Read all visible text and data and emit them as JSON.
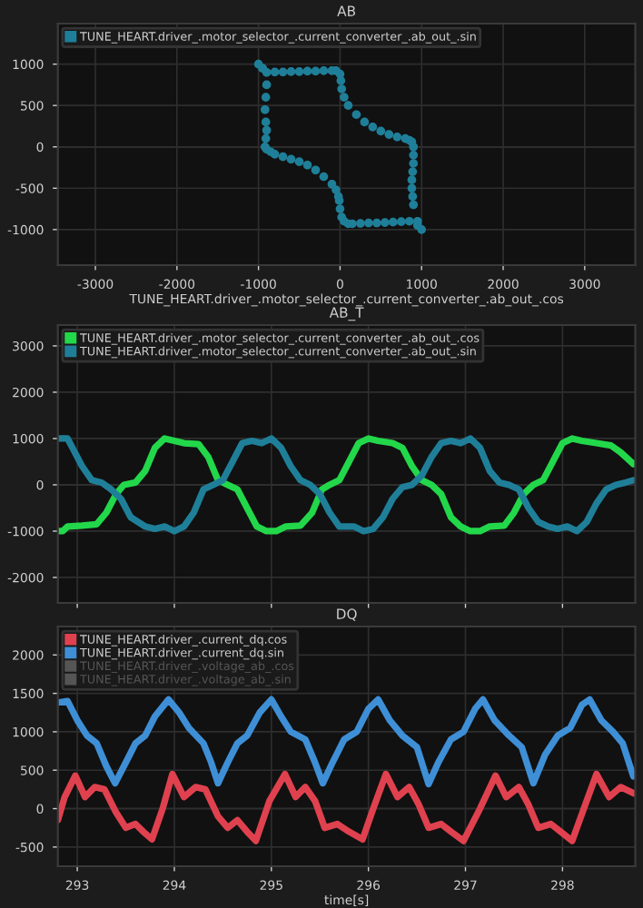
{
  "chart_data": [
    {
      "type": "scatter",
      "title": "AB",
      "xlabel": "TUNE_HEART.driver_.motor_selector_.current_converter_.ab_out_.cos",
      "grid": true,
      "legend": "top left",
      "marker": "circle",
      "xlim": [
        -3460,
        3620
      ],
      "xticks": [
        -3000,
        -2000,
        -1000,
        0,
        1000,
        2000,
        3000
      ],
      "ylim": [
        -1430,
        1490
      ],
      "yticks": [
        -1000,
        -500,
        0,
        500,
        1000
      ],
      "series": [
        {
          "name": "TUNE_HEART.driver_.motor_selector_.current_converter_.ab_out_.sin",
          "color": "#1f7f99",
          "x": [
            -1000,
            -950,
            -900,
            -800,
            -700,
            -600,
            -500,
            -400,
            -300,
            -200,
            -100,
            -50,
            0,
            10,
            20,
            50,
            100,
            200,
            300,
            400,
            500,
            600,
            700,
            800,
            850,
            880,
            900,
            900,
            900,
            890,
            880,
            880,
            890,
            900,
            950,
            1000,
            950,
            850,
            750,
            650,
            550,
            450,
            350,
            250,
            150,
            100,
            50,
            20,
            0,
            -10,
            -20,
            -50,
            -100,
            -200,
            -300,
            -400,
            -500,
            -600,
            -700,
            -800,
            -850,
            -900,
            -920,
            -910,
            -900,
            -910,
            -920,
            -910,
            -900,
            -950
          ],
          "values": [
            1000,
            950,
            900,
            905,
            905,
            910,
            910,
            915,
            915,
            920,
            920,
            920,
            880,
            800,
            700,
            600,
            500,
            390,
            300,
            240,
            190,
            150,
            120,
            100,
            80,
            60,
            0,
            -100,
            -200,
            -300,
            -400,
            -500,
            -600,
            -700,
            -900,
            -1000,
            -950,
            -900,
            -905,
            -910,
            -915,
            -920,
            -920,
            -925,
            -930,
            -930,
            -900,
            -850,
            -750,
            -650,
            -600,
            -520,
            -450,
            -360,
            -280,
            -220,
            -180,
            -150,
            -120,
            -90,
            -60,
            -30,
            0,
            100,
            200,
            300,
            450,
            600,
            750,
            950
          ]
        }
      ]
    },
    {
      "type": "line",
      "title": "AB_T",
      "grid": true,
      "legend": "top left",
      "marker": "none",
      "line_style": "solid",
      "tick_labels": "y",
      "xlim": [
        292.8,
        298.75
      ],
      "xticks": [
        293,
        294,
        295,
        296,
        297,
        298
      ],
      "ylim": [
        -2550,
        3450
      ],
      "yticks": [
        -2000,
        -1000,
        0,
        1000,
        2000,
        3000
      ],
      "series": [
        {
          "name": "TUNE_HEART.driver_.motor_selector_.current_converter_.ab_out_.cos",
          "color": "#22d84a",
          "x": [
            292.8,
            292.85,
            292.9,
            293.05,
            293.2,
            293.3,
            293.4,
            293.48,
            293.6,
            293.7,
            293.8,
            293.9,
            294.0,
            294.1,
            294.25,
            294.35,
            294.45,
            294.55,
            294.65,
            294.75,
            294.85,
            294.95,
            295.05,
            295.15,
            295.3,
            295.42,
            295.52,
            295.6,
            295.7,
            295.8,
            295.9,
            296.0,
            296.1,
            296.25,
            296.35,
            296.45,
            296.55,
            296.65,
            296.75,
            296.85,
            296.95,
            297.05,
            297.15,
            297.25,
            297.4,
            297.5,
            297.6,
            297.7,
            297.8,
            297.9,
            298.0,
            298.1,
            298.2,
            298.35,
            298.5,
            298.6,
            298.73
          ],
          "values": [
            -1000,
            -1000,
            -900,
            -880,
            -850,
            -600,
            -200,
            0,
            50,
            300,
            800,
            1000,
            950,
            900,
            880,
            600,
            100,
            0,
            -100,
            -500,
            -900,
            -1000,
            -1000,
            -900,
            -880,
            -600,
            -100,
            0,
            100,
            500,
            900,
            1000,
            950,
            900,
            800,
            400,
            100,
            0,
            -200,
            -700,
            -900,
            -1000,
            -1000,
            -900,
            -880,
            -600,
            -200,
            0,
            100,
            500,
            900,
            1000,
            950,
            900,
            850,
            700,
            450
          ]
        },
        {
          "name": "TUNE_HEART.driver_.motor_selector_.current_converter_.ab_out_.sin",
          "color": "#1f7f99",
          "x": [
            292.8,
            292.9,
            292.95,
            293.05,
            293.15,
            293.25,
            293.35,
            293.45,
            293.55,
            293.7,
            293.8,
            293.9,
            294.0,
            294.1,
            294.2,
            294.3,
            294.4,
            294.5,
            294.6,
            294.7,
            294.8,
            294.9,
            295.0,
            295.1,
            295.2,
            295.3,
            295.4,
            295.5,
            295.6,
            295.7,
            295.85,
            295.95,
            296.05,
            296.15,
            296.25,
            296.35,
            296.45,
            296.55,
            296.65,
            296.75,
            296.85,
            296.95,
            297.05,
            297.15,
            297.25,
            297.35,
            297.45,
            297.55,
            297.65,
            297.75,
            297.85,
            297.95,
            298.05,
            298.15,
            298.25,
            298.35,
            298.45,
            298.55,
            298.65,
            298.73
          ],
          "values": [
            1000,
            1000,
            800,
            400,
            100,
            50,
            -100,
            -300,
            -700,
            -900,
            -950,
            -900,
            -1000,
            -900,
            -600,
            -100,
            0,
            100,
            500,
            900,
            950,
            900,
            1000,
            800,
            400,
            100,
            0,
            -200,
            -600,
            -900,
            -900,
            -1000,
            -950,
            -700,
            -300,
            -50,
            0,
            200,
            600,
            900,
            950,
            900,
            1000,
            800,
            300,
            50,
            0,
            -100,
            -500,
            -800,
            -900,
            -950,
            -900,
            -1000,
            -800,
            -400,
            -100,
            0,
            50,
            100
          ]
        }
      ]
    },
    {
      "type": "line",
      "title": "DQ",
      "xlabel": "time[s]",
      "grid": true,
      "legend": "top left",
      "marker": "none",
      "line_style": "solid",
      "xlim": [
        292.8,
        298.75
      ],
      "xticks": [
        293,
        294,
        295,
        296,
        297,
        298
      ],
      "ylim": [
        -750,
        2370
      ],
      "yticks": [
        -500,
        0,
        500,
        1000,
        1500,
        2000
      ],
      "series": [
        {
          "name": "TUNE_HEART.driver_.current_dq.cos",
          "color": "#e0414f",
          "x": [
            292.8,
            292.87,
            292.98,
            293.08,
            293.18,
            293.28,
            293.4,
            293.5,
            293.6,
            293.68,
            293.77,
            293.88,
            293.98,
            294.1,
            294.22,
            294.32,
            294.45,
            294.55,
            294.65,
            294.75,
            294.84,
            294.98,
            295.14,
            295.25,
            295.35,
            295.45,
            295.55,
            295.68,
            295.8,
            295.94,
            296.05,
            296.18,
            296.3,
            296.42,
            296.52,
            296.62,
            296.75,
            296.85,
            296.98,
            297.15,
            297.31,
            297.42,
            297.55,
            297.65,
            297.75,
            297.88,
            297.98,
            298.1,
            298.22,
            298.35,
            298.48,
            298.6,
            298.73
          ],
          "values": [
            -150,
            150,
            430,
            150,
            280,
            250,
            -50,
            -250,
            -200,
            -300,
            -400,
            0,
            450,
            150,
            280,
            250,
            -100,
            -250,
            -150,
            -300,
            -420,
            100,
            450,
            150,
            280,
            100,
            -250,
            -200,
            -300,
            -400,
            0,
            450,
            150,
            280,
            50,
            -250,
            -200,
            -300,
            -420,
            0,
            430,
            150,
            280,
            50,
            -250,
            -200,
            -300,
            -420,
            0,
            450,
            150,
            280,
            200
          ]
        },
        {
          "name": "TUNE_HEART.driver_.current_dq.sin",
          "color": "#3e8fd6",
          "x": [
            292.8,
            292.9,
            293.0,
            293.1,
            293.2,
            293.3,
            293.39,
            293.5,
            293.6,
            293.7,
            293.8,
            293.94,
            294.05,
            294.15,
            294.3,
            294.38,
            294.45,
            294.55,
            294.65,
            294.75,
            294.88,
            295.0,
            295.1,
            295.2,
            295.35,
            295.45,
            295.53,
            295.63,
            295.75,
            295.88,
            296.0,
            296.1,
            296.22,
            296.35,
            296.5,
            296.62,
            296.72,
            296.85,
            296.98,
            297.1,
            297.18,
            297.3,
            297.45,
            297.58,
            297.7,
            297.82,
            297.95,
            298.08,
            298.2,
            298.28,
            298.4,
            298.52,
            298.62,
            298.73
          ],
          "values": [
            1380,
            1400,
            1150,
            950,
            850,
            550,
            330,
            600,
            850,
            950,
            1200,
            1420,
            1250,
            1050,
            850,
            600,
            330,
            600,
            850,
            950,
            1250,
            1420,
            1200,
            1000,
            900,
            600,
            330,
            600,
            900,
            1000,
            1300,
            1420,
            1150,
            950,
            800,
            320,
            600,
            900,
            1000,
            1300,
            1420,
            1150,
            950,
            800,
            330,
            700,
            950,
            1050,
            1350,
            1420,
            1150,
            1000,
            850,
            420
          ]
        },
        {
          "name": "TUNE_HEART.driver_.voltage_ab_.cos",
          "color": "#555555"
        },
        {
          "name": "TUNE_HEART.driver_.voltage_ab_.sin",
          "color": "#555555"
        }
      ]
    }
  ]
}
